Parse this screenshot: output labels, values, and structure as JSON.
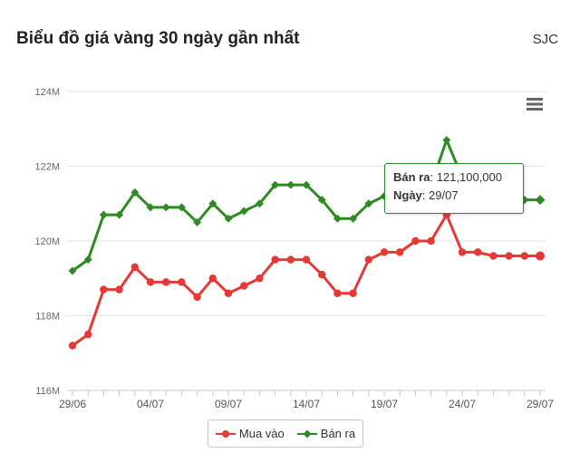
{
  "header": {
    "title": "Biểu đồ giá vàng 30 ngày gần nhất",
    "source": "SJC"
  },
  "menu": {
    "icon": "hamburger-menu-icon"
  },
  "colors": {
    "buy": "#e53935",
    "sell": "#2e8b23",
    "grid": "#e0e0e0"
  },
  "chart_data": {
    "type": "line",
    "x": [
      "29/06",
      "30/06",
      "01/07",
      "02/07",
      "03/07",
      "04/07",
      "05/07",
      "06/07",
      "07/07",
      "08/07",
      "09/07",
      "10/07",
      "11/07",
      "12/07",
      "13/07",
      "14/07",
      "15/07",
      "16/07",
      "17/07",
      "18/07",
      "19/07",
      "20/07",
      "21/07",
      "22/07",
      "23/07",
      "24/07",
      "25/07",
      "26/07",
      "27/07",
      "28/07",
      "29/07"
    ],
    "xticks": [
      "29/06",
      "04/07",
      "09/07",
      "14/07",
      "19/07",
      "24/07",
      "29/07"
    ],
    "yticks": [
      "116M",
      "118M",
      "120M",
      "122M",
      "124M"
    ],
    "ylim": [
      116000000,
      124000000
    ],
    "grid": true,
    "legend_position": "bottom",
    "series": [
      {
        "name": "Mua vào",
        "color": "#e53935",
        "marker": "circle",
        "values": [
          117200000,
          117500000,
          118700000,
          118700000,
          119300000,
          118900000,
          118900000,
          118900000,
          118500000,
          119000000,
          118600000,
          118800000,
          119000000,
          119500000,
          119500000,
          119500000,
          119100000,
          118600000,
          118600000,
          119500000,
          119700000,
          119700000,
          120000000,
          120000000,
          120700000,
          119700000,
          119700000,
          119600000,
          119600000,
          119600000,
          119600000
        ]
      },
      {
        "name": "Bán ra",
        "color": "#2e8b23",
        "marker": "diamond",
        "values": [
          119200000,
          119500000,
          120700000,
          120700000,
          121300000,
          120900000,
          120900000,
          120900000,
          120500000,
          121000000,
          120600000,
          120800000,
          121000000,
          121500000,
          121500000,
          121500000,
          121100000,
          120600000,
          120600000,
          121000000,
          121200000,
          121200000,
          121500000,
          121500000,
          122700000,
          121700000,
          121700000,
          121100000,
          121100000,
          121100000,
          121100000
        ]
      }
    ]
  },
  "tooltip": {
    "series_label": "Bán ra",
    "value_text": "121,100,000",
    "date_label": "Ngày",
    "date_value": "29/07"
  }
}
